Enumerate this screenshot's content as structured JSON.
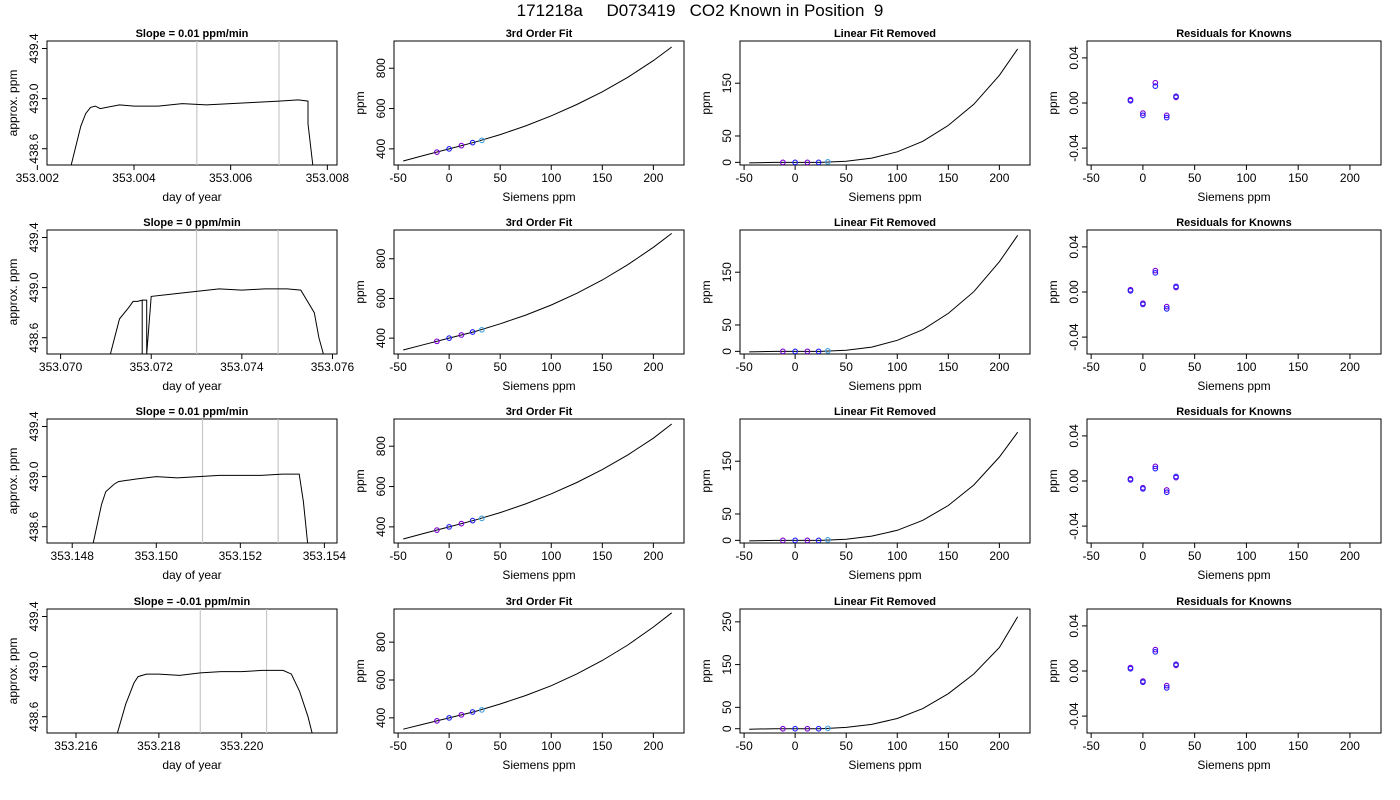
{
  "page_title": "171218a     D073419   CO2 Known in Position  9",
  "colors": {
    "trace": "#000000",
    "cursor_lines": "#c8c8c8",
    "points_purple": "#7a00d6",
    "points_blue": "#1f1fff",
    "points_cyan": "#3fa0e0",
    "points_pink": "#e070b0"
  },
  "chart_data": [
    {
      "type": "line",
      "title": "Slope =  0.01  ppm/min",
      "xlabel": "day of year",
      "ylabel": "approx. ppm",
      "xlim": [
        353.0022,
        353.0082
      ],
      "ylim": [
        438.47,
        439.46
      ],
      "xticks": [
        "353.002",
        "353.004",
        "353.006",
        "353.008"
      ],
      "yticks": [
        "438.6",
        "439.0",
        "439.4"
      ],
      "vlines": [
        353.0053,
        353.007
      ],
      "trace": {
        "x": [
          353.0027,
          353.0029,
          353.003,
          353.0031,
          353.0032,
          353.0033,
          353.0037,
          353.004,
          353.0045,
          353.005,
          353.0055,
          353.006,
          353.0065,
          353.007,
          353.0074,
          353.0076,
          353.0076,
          353.0077
        ],
        "y": [
          438.47,
          438.78,
          438.88,
          438.93,
          438.94,
          438.92,
          438.95,
          438.94,
          438.94,
          438.96,
          438.95,
          438.96,
          438.97,
          438.98,
          438.99,
          438.98,
          438.8,
          438.47
        ]
      }
    },
    {
      "type": "line",
      "title": "3rd Order Fit",
      "xlabel": "Siemens ppm",
      "ylabel": "ppm",
      "xlim": [
        -54,
        230
      ],
      "ylim": [
        320,
        935
      ],
      "xticks": [
        -50,
        0,
        50,
        100,
        150,
        200
      ],
      "yticks": [
        400,
        600,
        800
      ],
      "curve": {
        "x": [
          -45,
          -25,
          0,
          25,
          50,
          75,
          100,
          125,
          150,
          175,
          200,
          218
        ],
        "y": [
          340,
          367,
          400,
          433,
          471,
          514,
          564,
          620,
          683,
          755,
          838,
          905
        ]
      },
      "points": {
        "x": [
          -12,
          0,
          12,
          23,
          32
        ],
        "y": [
          384,
          400,
          416,
          431,
          442
        ]
      }
    },
    {
      "type": "line",
      "title": "Linear Fit Removed",
      "xlabel": "Siemens ppm",
      "ylabel": "ppm",
      "xlim": [
        -54,
        230
      ],
      "ylim": [
        -5,
        230
      ],
      "xticks": [
        -50,
        0,
        50,
        100,
        150,
        200
      ],
      "yticks": [
        0,
        50,
        150
      ],
      "curve": {
        "x": [
          -45,
          -20,
          0,
          25,
          50,
          75,
          100,
          125,
          150,
          175,
          200,
          218
        ],
        "y": [
          -1,
          0,
          0,
          0,
          2,
          8,
          20,
          40,
          70,
          110,
          165,
          215
        ]
      },
      "points": {
        "x": [
          -12,
          0,
          12,
          23,
          32
        ],
        "y": [
          0,
          0,
          0,
          0,
          1
        ]
      }
    },
    {
      "type": "scatter",
      "title": "Residuals for Knowns",
      "xlabel": "Siemens ppm",
      "ylabel": "ppm",
      "xlim": [
        -54,
        230
      ],
      "ylim": [
        -0.055,
        0.055
      ],
      "xticks": [
        -50,
        0,
        50,
        100,
        150,
        200
      ],
      "yticks": [
        "-0.04",
        "0.00",
        "0.04"
      ],
      "points": {
        "x": [
          -12,
          -12,
          0,
          0,
          12,
          12,
          23,
          23,
          32,
          32
        ],
        "y": [
          0.003,
          0.002,
          -0.009,
          -0.011,
          0.018,
          0.015,
          -0.011,
          -0.013,
          0.005,
          0.006
        ]
      }
    },
    {
      "type": "line",
      "title": "Slope =  0  ppm/min",
      "xlabel": "day of year",
      "ylabel": "approx. ppm",
      "xlim": [
        353.0697,
        353.0761
      ],
      "ylim": [
        438.47,
        439.46
      ],
      "xticks": [
        "353.070",
        "353.072",
        "353.074",
        "353.076"
      ],
      "yticks": [
        "438.6",
        "439.0",
        "439.4"
      ],
      "vlines": [
        353.073,
        353.0748
      ],
      "trace": {
        "x": [
          353.0711,
          353.0713,
          353.0715,
          353.0716,
          353.0717,
          353.0718,
          353.0718,
          353.0718,
          353.0719,
          353.0719,
          353.072,
          353.0725,
          353.073,
          353.0735,
          353.074,
          353.0745,
          353.075,
          353.0753,
          353.0756,
          353.0757,
          353.0758
        ],
        "y": [
          438.47,
          438.75,
          438.84,
          438.89,
          438.89,
          438.9,
          438.47,
          438.9,
          438.9,
          438.47,
          438.93,
          438.95,
          438.97,
          438.99,
          438.98,
          438.99,
          438.99,
          438.98,
          438.8,
          438.6,
          438.47
        ]
      }
    },
    {
      "type": "line",
      "title": "3rd Order Fit",
      "xlabel": "Siemens ppm",
      "ylabel": "ppm",
      "xlim": [
        -54,
        230
      ],
      "ylim": [
        320,
        945
      ],
      "xticks": [
        -50,
        0,
        50,
        100,
        150,
        200
      ],
      "yticks": [
        400,
        600,
        800
      ],
      "curve": {
        "x": [
          -45,
          -25,
          0,
          25,
          50,
          75,
          100,
          125,
          150,
          175,
          200,
          218
        ],
        "y": [
          340,
          367,
          400,
          433,
          472,
          516,
          567,
          626,
          693,
          770,
          858,
          928
        ]
      },
      "points": {
        "x": [
          -12,
          0,
          12,
          23,
          32
        ],
        "y": [
          384,
          400,
          416,
          431,
          442
        ]
      }
    },
    {
      "type": "line",
      "title": "Linear Fit Removed",
      "xlabel": "Siemens ppm",
      "ylabel": "ppm",
      "xlim": [
        -54,
        230
      ],
      "ylim": [
        -5,
        230
      ],
      "xticks": [
        -50,
        0,
        50,
        100,
        150,
        200
      ],
      "yticks": [
        0,
        50,
        150
      ],
      "curve": {
        "x": [
          -45,
          -20,
          0,
          25,
          50,
          75,
          100,
          125,
          150,
          175,
          200,
          218
        ],
        "y": [
          -1,
          0,
          0,
          0,
          2,
          8,
          21,
          41,
          72,
          113,
          170,
          220
        ]
      },
      "points": {
        "x": [
          -12,
          0,
          12,
          23,
          32
        ],
        "y": [
          0,
          0,
          0,
          0,
          1
        ]
      }
    },
    {
      "type": "scatter",
      "title": "Residuals for Knowns",
      "xlabel": "Siemens ppm",
      "ylabel": "ppm",
      "xlim": [
        -54,
        230
      ],
      "ylim": [
        -0.055,
        0.055
      ],
      "xticks": [
        -50,
        0,
        50,
        100,
        150,
        200
      ],
      "yticks": [
        "-0.04",
        "0.00",
        "0.04"
      ],
      "points": {
        "x": [
          -12,
          -12,
          0,
          0,
          12,
          12,
          23,
          23,
          32,
          32
        ],
        "y": [
          0.002,
          0.001,
          -0.01,
          -0.011,
          0.019,
          0.017,
          -0.013,
          -0.015,
          0.004,
          0.005
        ]
      }
    },
    {
      "type": "line",
      "title": "Slope =  0.01  ppm/min",
      "xlabel": "day of year",
      "ylabel": "approx. ppm",
      "xlim": [
        353.1474,
        353.1543
      ],
      "ylim": [
        438.47,
        439.46
      ],
      "xticks": [
        "353.148",
        "353.150",
        "353.152",
        "353.154"
      ],
      "yticks": [
        "438.6",
        "439.0",
        "439.4"
      ],
      "vlines": [
        353.1511,
        353.1529
      ],
      "trace": {
        "x": [
          353.1485,
          353.1487,
          353.1488,
          353.149,
          353.1491,
          353.1495,
          353.15,
          353.1505,
          353.151,
          353.1515,
          353.152,
          353.1525,
          353.153,
          353.1534,
          353.1535,
          353.1536
        ],
        "y": [
          438.47,
          438.78,
          438.88,
          438.94,
          438.96,
          438.98,
          439.0,
          438.99,
          439.0,
          439.01,
          439.01,
          439.01,
          439.02,
          439.02,
          438.8,
          438.47
        ]
      }
    },
    {
      "type": "line",
      "title": "3rd Order Fit",
      "xlabel": "Siemens ppm",
      "ylabel": "ppm",
      "xlim": [
        -54,
        230
      ],
      "ylim": [
        320,
        935
      ],
      "xticks": [
        -50,
        0,
        50,
        100,
        150,
        200
      ],
      "yticks": [
        400,
        600,
        800
      ],
      "curve": {
        "x": [
          -45,
          -25,
          0,
          25,
          50,
          75,
          100,
          125,
          150,
          175,
          200,
          218
        ],
        "y": [
          340,
          367,
          400,
          433,
          471,
          514,
          564,
          620,
          684,
          757,
          840,
          910
        ]
      },
      "points": {
        "x": [
          -12,
          0,
          12,
          23,
          32
        ],
        "y": [
          384,
          400,
          416,
          431,
          442
        ]
      }
    },
    {
      "type": "line",
      "title": "Linear Fit Removed",
      "xlabel": "Siemens ppm",
      "ylabel": "ppm",
      "xlim": [
        -54,
        230
      ],
      "ylim": [
        -5,
        230
      ],
      "xticks": [
        -50,
        0,
        50,
        100,
        150,
        200
      ],
      "yticks": [
        0,
        50,
        150
      ],
      "curve": {
        "x": [
          -45,
          -20,
          0,
          25,
          50,
          75,
          100,
          125,
          150,
          175,
          200,
          218
        ],
        "y": [
          -1,
          0,
          0,
          0,
          2,
          8,
          19,
          38,
          66,
          105,
          158,
          205
        ]
      },
      "points": {
        "x": [
          -12,
          0,
          12,
          23,
          32
        ],
        "y": [
          0,
          0,
          0,
          0,
          1
        ]
      }
    },
    {
      "type": "scatter",
      "title": "Residuals for Knowns",
      "xlabel": "Siemens ppm",
      "ylabel": "ppm",
      "xlim": [
        -54,
        230
      ],
      "ylim": [
        -0.055,
        0.055
      ],
      "xticks": [
        -50,
        0,
        50,
        100,
        150,
        200
      ],
      "yticks": [
        "-0.04",
        "0.00",
        "0.04"
      ],
      "points": {
        "x": [
          -12,
          -12,
          0,
          0,
          12,
          12,
          23,
          23,
          32,
          32
        ],
        "y": [
          0.002,
          0.001,
          -0.006,
          -0.007,
          0.013,
          0.011,
          -0.008,
          -0.01,
          0.003,
          0.004
        ]
      }
    },
    {
      "type": "line",
      "title": "Slope =  -0.01  ppm/min",
      "xlabel": "day of year",
      "ylabel": "approx. ppm",
      "xlim": [
        353.2153,
        353.2223
      ],
      "ylim": [
        438.47,
        439.46
      ],
      "xticks": [
        "353.216",
        "353.218",
        "353.220"
      ],
      "yticks": [
        "438.6",
        "439.0",
        "439.4"
      ],
      "vlines": [
        353.219,
        353.2206
      ],
      "trace": {
        "x": [
          353.217,
          353.2172,
          353.2174,
          353.2175,
          353.2177,
          353.218,
          353.2185,
          353.219,
          353.2195,
          353.22,
          353.2205,
          353.221,
          353.2212,
          353.2214,
          353.2216,
          353.2217
        ],
        "y": [
          438.47,
          438.7,
          438.87,
          438.92,
          438.94,
          438.94,
          438.93,
          438.95,
          438.96,
          438.96,
          438.97,
          438.97,
          438.94,
          438.8,
          438.6,
          438.47
        ]
      }
    },
    {
      "type": "line",
      "title": "3rd Order Fit",
      "xlabel": "Siemens ppm",
      "ylabel": "ppm",
      "xlim": [
        -54,
        230
      ],
      "ylim": [
        320,
        975
      ],
      "xticks": [
        -50,
        0,
        50,
        100,
        150,
        200
      ],
      "yticks": [
        400,
        600,
        800
      ],
      "curve": {
        "x": [
          -45,
          -25,
          0,
          25,
          50,
          75,
          100,
          125,
          150,
          175,
          200,
          218
        ],
        "y": [
          340,
          367,
          400,
          433,
          473,
          518,
          570,
          632,
          703,
          785,
          880,
          955
        ]
      },
      "points": {
        "x": [
          -12,
          0,
          12,
          23,
          32
        ],
        "y": [
          384,
          400,
          416,
          431,
          442
        ]
      }
    },
    {
      "type": "line",
      "title": "Linear Fit Removed",
      "xlabel": "Siemens ppm",
      "ylabel": "ppm",
      "xlim": [
        -54,
        230
      ],
      "ylim": [
        -10,
        280
      ],
      "xticks": [
        -50,
        0,
        50,
        100,
        150,
        200
      ],
      "yticks": [
        0,
        50,
        150,
        250
      ],
      "curve": {
        "x": [
          -45,
          -20,
          0,
          25,
          50,
          75,
          100,
          125,
          150,
          175,
          200,
          218
        ],
        "y": [
          -1,
          0,
          0,
          0,
          3,
          10,
          24,
          47,
          82,
          128,
          190,
          262
        ]
      },
      "points": {
        "x": [
          -12,
          0,
          12,
          23,
          32
        ],
        "y": [
          0,
          0,
          0,
          0,
          1
        ]
      }
    },
    {
      "type": "scatter",
      "title": "Residuals for Knowns",
      "xlabel": "Siemens ppm",
      "ylabel": "ppm",
      "xlim": [
        -54,
        230
      ],
      "ylim": [
        -0.055,
        0.055
      ],
      "xticks": [
        -50,
        0,
        50,
        100,
        150,
        200
      ],
      "yticks": [
        "-0.04",
        "0.00",
        "0.04"
      ],
      "points": {
        "x": [
          -12,
          -12,
          0,
          0,
          12,
          12,
          23,
          23,
          32,
          32
        ],
        "y": [
          0.003,
          0.002,
          -0.009,
          -0.01,
          0.019,
          0.017,
          -0.013,
          -0.015,
          0.005,
          0.006
        ]
      }
    }
  ]
}
